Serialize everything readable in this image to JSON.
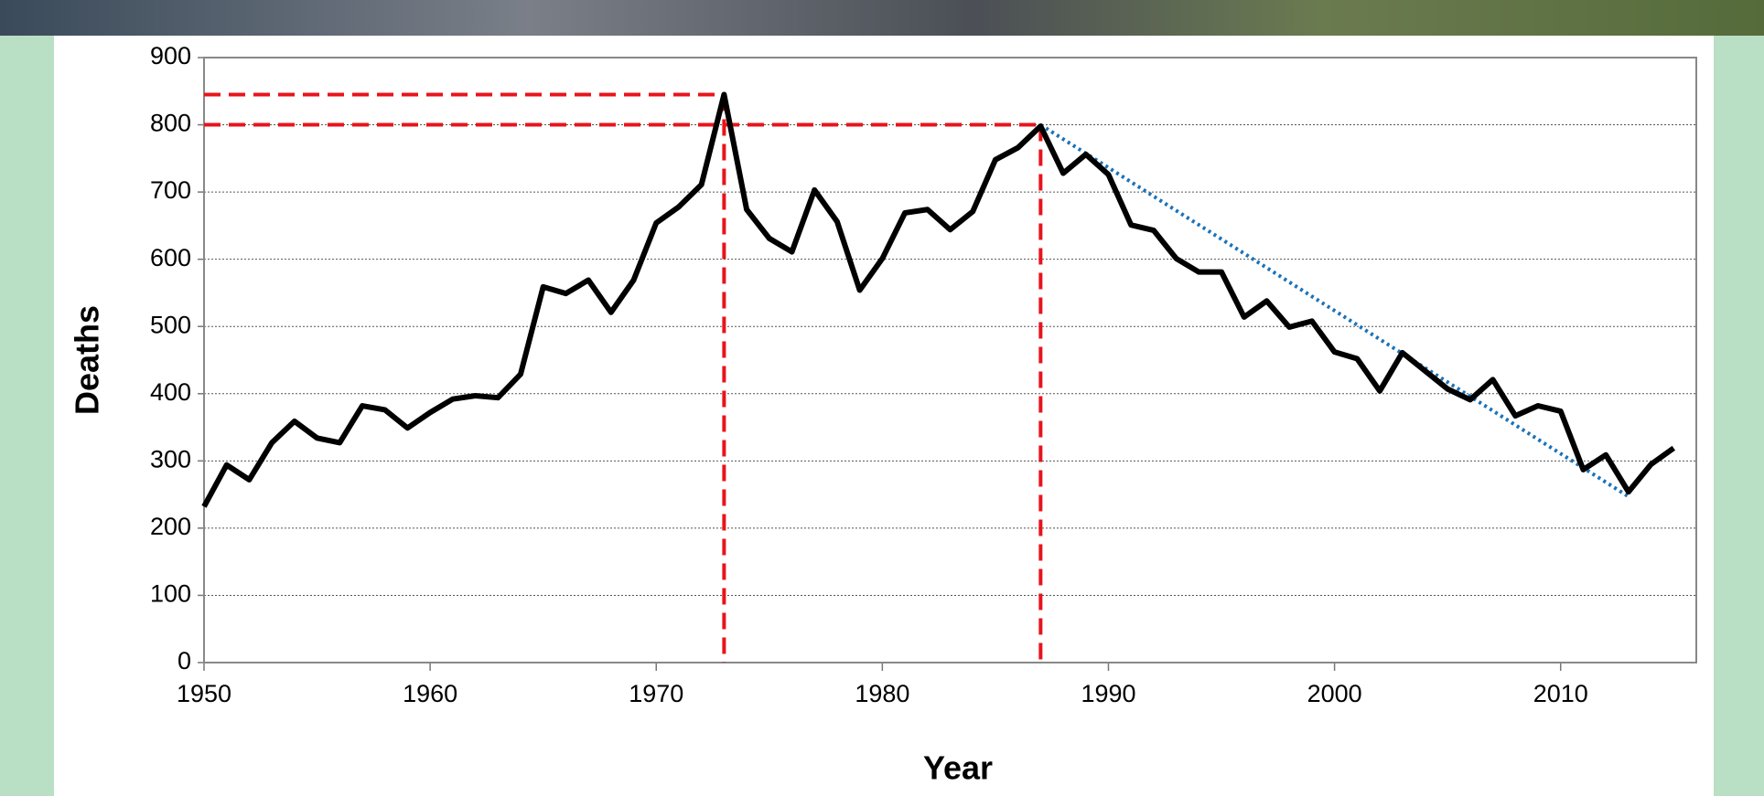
{
  "chart_data": {
    "type": "line",
    "y_label": "Deaths",
    "x_label": "Year",
    "x": [
      1950,
      1951,
      1952,
      1953,
      1954,
      1955,
      1956,
      1957,
      1958,
      1959,
      1960,
      1961,
      1962,
      1963,
      1964,
      1965,
      1966,
      1967,
      1968,
      1969,
      1970,
      1971,
      1972,
      1973,
      1974,
      1975,
      1976,
      1977,
      1978,
      1979,
      1980,
      1981,
      1982,
      1983,
      1984,
      1985,
      1986,
      1987,
      1988,
      1989,
      1990,
      1991,
      1992,
      1993,
      1994,
      1995,
      1996,
      1997,
      1998,
      1999,
      2000,
      2001,
      2002,
      2003,
      2004,
      2005,
      2006,
      2007,
      2008,
      2009,
      2010,
      2011,
      2012,
      2013,
      2014,
      2015
    ],
    "series": [
      {
        "color": "#000000",
        "values": [
          232,
          294,
          272,
          327,
          359,
          334,
          327,
          382,
          376,
          349,
          372,
          392,
          397,
          394,
          429,
          559,
          549,
          569,
          521,
          569,
          654,
          678,
          711,
          845,
          674,
          631,
          611,
          703,
          656,
          554,
          601,
          669,
          674,
          644,
          671,
          748,
          766,
          798,
          728,
          756,
          726,
          651,
          643,
          601,
          581,
          581,
          514,
          538,
          499,
          508,
          462,
          452,
          404,
          461,
          434,
          407,
          391,
          421,
          367,
          382,
          374,
          287,
          309,
          254,
          295,
          319
        ]
      }
    ],
    "reference_points": {
      "color": "#e8141c",
      "x": [
        1973,
        1987
      ],
      "y": [
        845,
        800
      ]
    },
    "trend": {
      "color": "#1a72b8",
      "x": [
        1987,
        2013
      ],
      "y": [
        800,
        247
      ]
    },
    "xlim": [
      1950,
      2016
    ],
    "xticks": [
      1950,
      1960,
      1970,
      1980,
      1990,
      2000,
      2010
    ],
    "ylim": [
      0,
      900
    ],
    "yticks": [
      0,
      100,
      200,
      300,
      400,
      500,
      600,
      700,
      800,
      900
    ],
    "grid": true
  }
}
